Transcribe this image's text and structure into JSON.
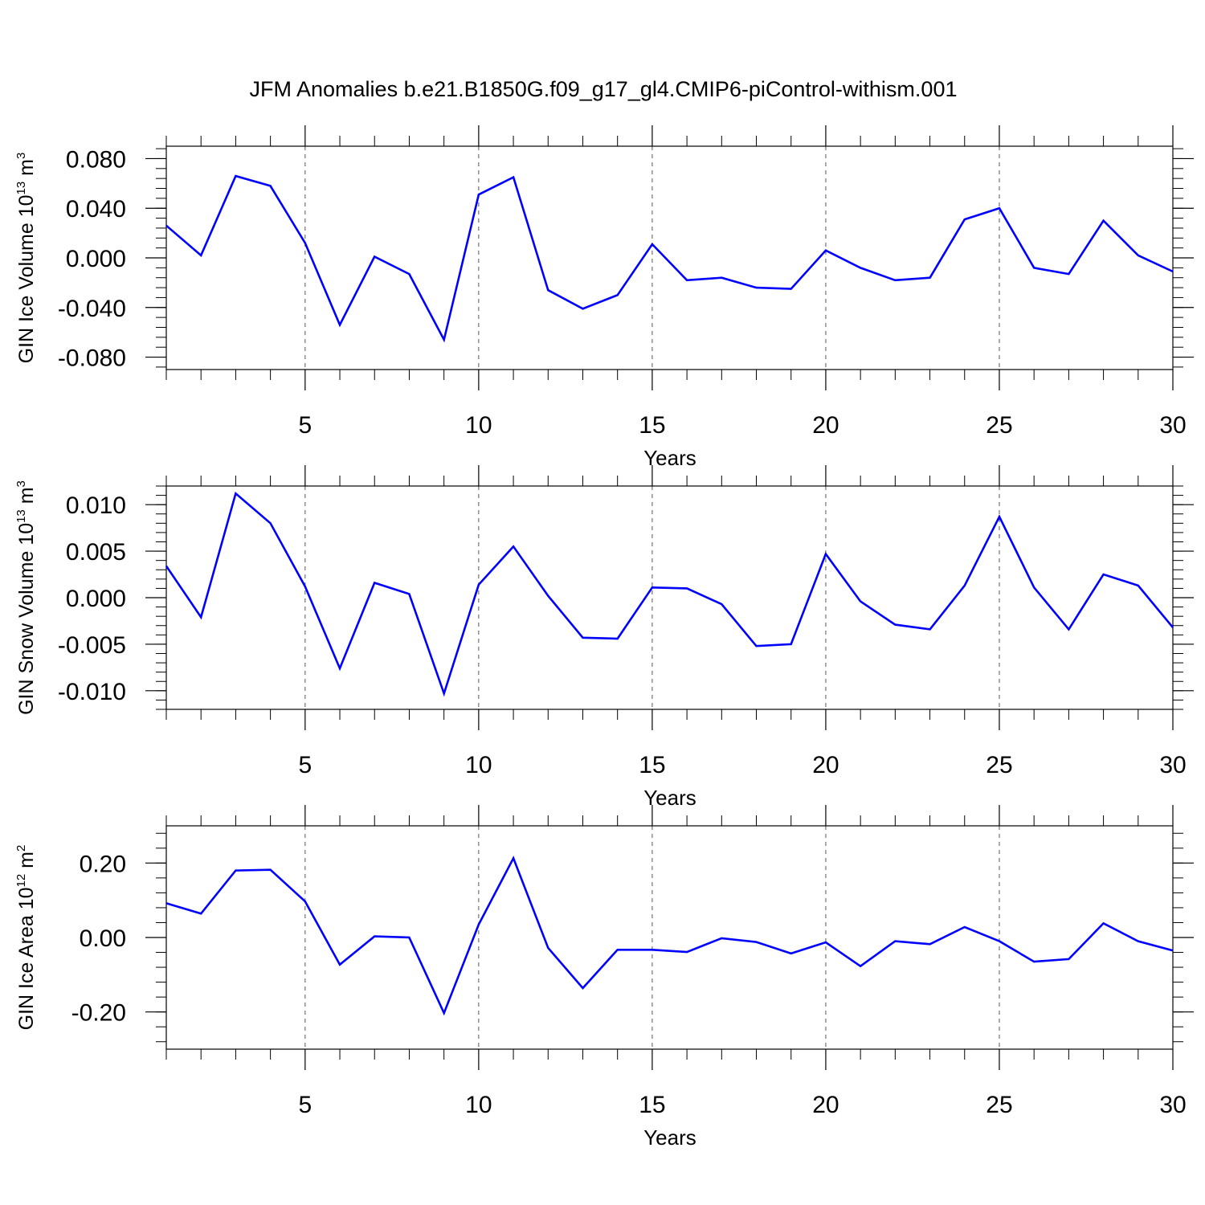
{
  "title": "JFM Anomalies b.e21.B1850G.f09_g17_gl4.CMIP6-piControl-withism.001",
  "colors": {
    "line": "#0000ff",
    "axis": "#000000",
    "grid": "#555555"
  },
  "chart_data": [
    {
      "type": "line",
      "xlabel": "Years",
      "ylabel": {
        "text": "GIN Ice Volume 10",
        "exp": "13",
        "unit": "m",
        "unit_exp": "3"
      },
      "xlim": [
        1,
        30
      ],
      "ylim": [
        -0.09,
        0.09
      ],
      "xticks": [
        5,
        10,
        15,
        20,
        25,
        30
      ],
      "xtick_labels": [
        "5",
        "10",
        "15",
        "20",
        "25",
        "30"
      ],
      "yticks": [
        0.08,
        0.04,
        0.0,
        -0.04,
        -0.08
      ],
      "ytick_labels": [
        "0.080",
        "0.040",
        "0.000",
        "-0.040",
        "-0.080"
      ],
      "grid": "vertical dashed at 5, 10, 15, 20, 25",
      "x": [
        1,
        2,
        3,
        4,
        5,
        6,
        7,
        8,
        9,
        10,
        11,
        12,
        13,
        14,
        15,
        16,
        17,
        18,
        19,
        20,
        21,
        22,
        23,
        24,
        25,
        26,
        27,
        28,
        29,
        30
      ],
      "values": [
        0.026,
        0.002,
        0.066,
        0.058,
        0.012,
        -0.054,
        0.001,
        -0.013,
        -0.066,
        0.051,
        0.065,
        -0.026,
        -0.041,
        -0.03,
        0.011,
        -0.018,
        -0.016,
        -0.024,
        -0.025,
        0.006,
        -0.008,
        -0.018,
        -0.016,
        0.031,
        0.04,
        -0.008,
        -0.013,
        0.03,
        0.002,
        -0.011
      ]
    },
    {
      "type": "line",
      "xlabel": "Years",
      "ylabel": {
        "text": "GIN Snow Volume 10",
        "exp": "13",
        "unit": "m",
        "unit_exp": "3"
      },
      "xlim": [
        1,
        30
      ],
      "ylim": [
        -0.012,
        0.012
      ],
      "xticks": [
        5,
        10,
        15,
        20,
        25,
        30
      ],
      "xtick_labels": [
        "5",
        "10",
        "15",
        "20",
        "25",
        "30"
      ],
      "yticks": [
        0.01,
        0.005,
        0.0,
        -0.005,
        -0.01
      ],
      "ytick_labels": [
        "0.010",
        "0.005",
        "0.000",
        "-0.005",
        "-0.010"
      ],
      "grid": "vertical dashed at 5, 10, 15, 20, 25",
      "x": [
        1,
        2,
        3,
        4,
        5,
        6,
        7,
        8,
        9,
        10,
        11,
        12,
        13,
        14,
        15,
        16,
        17,
        18,
        19,
        20,
        21,
        22,
        23,
        24,
        25,
        26,
        27,
        28,
        29,
        30
      ],
      "values": [
        0.0034,
        -0.0021,
        0.0112,
        0.008,
        0.0012,
        -0.0076,
        0.0016,
        0.0004,
        -0.0103,
        0.0014,
        0.0055,
        0.0002,
        -0.0043,
        -0.0044,
        0.0011,
        0.001,
        -0.0007,
        -0.0052,
        -0.005,
        0.0047,
        -0.0004,
        -0.0029,
        -0.0034,
        0.0013,
        0.0087,
        0.0011,
        -0.0034,
        0.0025,
        0.0013,
        -0.0032
      ]
    },
    {
      "type": "line",
      "xlabel": "Years",
      "ylabel": {
        "text": "GIN Ice Area 10",
        "exp": "12",
        "unit": "m",
        "unit_exp": "2"
      },
      "xlim": [
        1,
        30
      ],
      "ylim": [
        -0.3,
        0.3
      ],
      "xticks": [
        5,
        10,
        15,
        20,
        25,
        30
      ],
      "xtick_labels": [
        "5",
        "10",
        "15",
        "20",
        "25",
        "30"
      ],
      "yticks": [
        0.2,
        0.0,
        -0.2
      ],
      "ytick_labels": [
        "0.20",
        "0.00",
        "-0.20"
      ],
      "grid": "vertical dashed at 5, 10, 15, 20, 25",
      "x": [
        1,
        2,
        3,
        4,
        5,
        6,
        7,
        8,
        9,
        10,
        11,
        12,
        13,
        14,
        15,
        16,
        17,
        18,
        19,
        20,
        21,
        22,
        23,
        24,
        25,
        26,
        27,
        28,
        29,
        30
      ],
      "values": [
        0.092,
        0.064,
        0.18,
        0.182,
        0.097,
        -0.073,
        0.003,
        0.0,
        -0.203,
        0.035,
        0.213,
        -0.028,
        -0.136,
        -0.033,
        -0.033,
        -0.039,
        -0.002,
        -0.012,
        -0.043,
        -0.013,
        -0.077,
        -0.01,
        -0.018,
        0.028,
        -0.01,
        -0.065,
        -0.058,
        0.038,
        -0.01,
        -0.035
      ]
    }
  ]
}
